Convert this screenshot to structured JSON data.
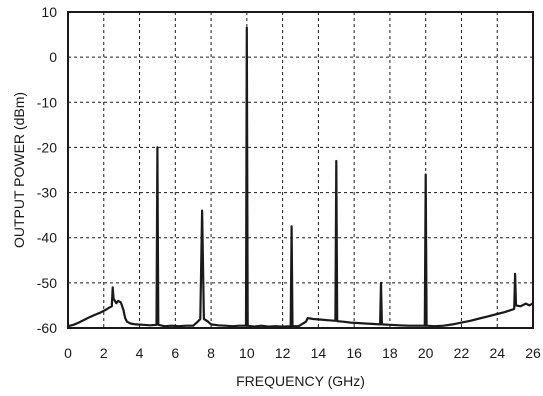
{
  "chart_data": {
    "type": "line",
    "title": "",
    "xlabel": "FREQUENCY (GHz)",
    "ylabel": "OUTPUT POWER (dBm)",
    "xlim": [
      0,
      26
    ],
    "ylim": [
      -60,
      10
    ],
    "grid": true,
    "x_ticks": [
      "0",
      "2",
      "4",
      "6",
      "8",
      "10",
      "12",
      "14",
      "16",
      "18",
      "20",
      "22",
      "24",
      "26"
    ],
    "y_ticks": [
      "10",
      "0",
      "-10",
      "-20",
      "-30",
      "-40",
      "-50",
      "-60"
    ],
    "line_color": "#1a1a1a",
    "series": [
      {
        "points": [
          [
            0.0,
            -59.6
          ],
          [
            0.3,
            -59.3
          ],
          [
            0.6,
            -58.8
          ],
          [
            0.9,
            -58.2
          ],
          [
            1.2,
            -57.6
          ],
          [
            1.5,
            -57.1
          ],
          [
            1.8,
            -56.6
          ],
          [
            2.1,
            -56.0
          ],
          [
            2.3,
            -55.5
          ],
          [
            2.45,
            -55.2
          ],
          [
            2.5,
            -51.0
          ],
          [
            2.55,
            -53.5
          ],
          [
            2.7,
            -54.5
          ],
          [
            2.8,
            -54.0
          ],
          [
            2.95,
            -54.3
          ],
          [
            3.1,
            -56.0
          ],
          [
            3.2,
            -57.8
          ],
          [
            3.3,
            -58.6
          ],
          [
            3.5,
            -59.0
          ],
          [
            3.8,
            -59.2
          ],
          [
            4.2,
            -59.3
          ],
          [
            4.6,
            -59.4
          ],
          [
            4.95,
            -59.3
          ],
          [
            5.0,
            -20.0
          ],
          [
            5.05,
            -59.3
          ],
          [
            5.4,
            -59.6
          ],
          [
            5.8,
            -59.5
          ],
          [
            6.2,
            -59.6
          ],
          [
            6.6,
            -59.5
          ],
          [
            7.0,
            -59.5
          ],
          [
            7.2,
            -58.8
          ],
          [
            7.4,
            -58.0
          ],
          [
            7.5,
            -34.0
          ],
          [
            7.6,
            -58.0
          ],
          [
            7.8,
            -58.5
          ],
          [
            8.0,
            -59.2
          ],
          [
            8.4,
            -59.4
          ],
          [
            8.8,
            -59.5
          ],
          [
            9.2,
            -59.6
          ],
          [
            9.6,
            -59.5
          ],
          [
            9.95,
            -59.5
          ],
          [
            10.0,
            6.5
          ],
          [
            10.05,
            -59.5
          ],
          [
            10.4,
            -59.7
          ],
          [
            10.8,
            -59.5
          ],
          [
            11.2,
            -59.7
          ],
          [
            11.6,
            -59.6
          ],
          [
            12.0,
            -59.7
          ],
          [
            12.45,
            -59.6
          ],
          [
            12.5,
            -37.5
          ],
          [
            12.55,
            -59.6
          ],
          [
            12.9,
            -59.6
          ],
          [
            13.3,
            -58.6
          ],
          [
            13.4,
            -57.8
          ],
          [
            13.7,
            -58.0
          ],
          [
            14.0,
            -58.1
          ],
          [
            14.3,
            -58.2
          ],
          [
            14.6,
            -58.3
          ],
          [
            14.95,
            -58.4
          ],
          [
            15.0,
            -23.0
          ],
          [
            15.05,
            -58.5
          ],
          [
            15.4,
            -58.6
          ],
          [
            15.8,
            -58.8
          ],
          [
            16.2,
            -58.9
          ],
          [
            16.6,
            -59.0
          ],
          [
            17.0,
            -59.1
          ],
          [
            17.45,
            -59.2
          ],
          [
            17.5,
            -50.0
          ],
          [
            17.55,
            -59.2
          ],
          [
            18.0,
            -59.3
          ],
          [
            18.5,
            -59.4
          ],
          [
            19.0,
            -59.5
          ],
          [
            19.5,
            -59.5
          ],
          [
            19.95,
            -59.5
          ],
          [
            20.0,
            -26.0
          ],
          [
            20.05,
            -59.5
          ],
          [
            20.5,
            -59.6
          ],
          [
            21.0,
            -59.5
          ],
          [
            21.5,
            -59.2
          ],
          [
            22.0,
            -58.8
          ],
          [
            22.5,
            -58.4
          ],
          [
            23.0,
            -57.9
          ],
          [
            23.5,
            -57.4
          ],
          [
            24.0,
            -56.9
          ],
          [
            24.4,
            -56.5
          ],
          [
            24.7,
            -56.1
          ],
          [
            24.95,
            -55.8
          ],
          [
            25.0,
            -48.0
          ],
          [
            25.05,
            -55.0
          ],
          [
            25.3,
            -55.2
          ],
          [
            25.6,
            -54.6
          ],
          [
            25.8,
            -55.0
          ],
          [
            26.0,
            -54.5
          ]
        ]
      }
    ]
  }
}
